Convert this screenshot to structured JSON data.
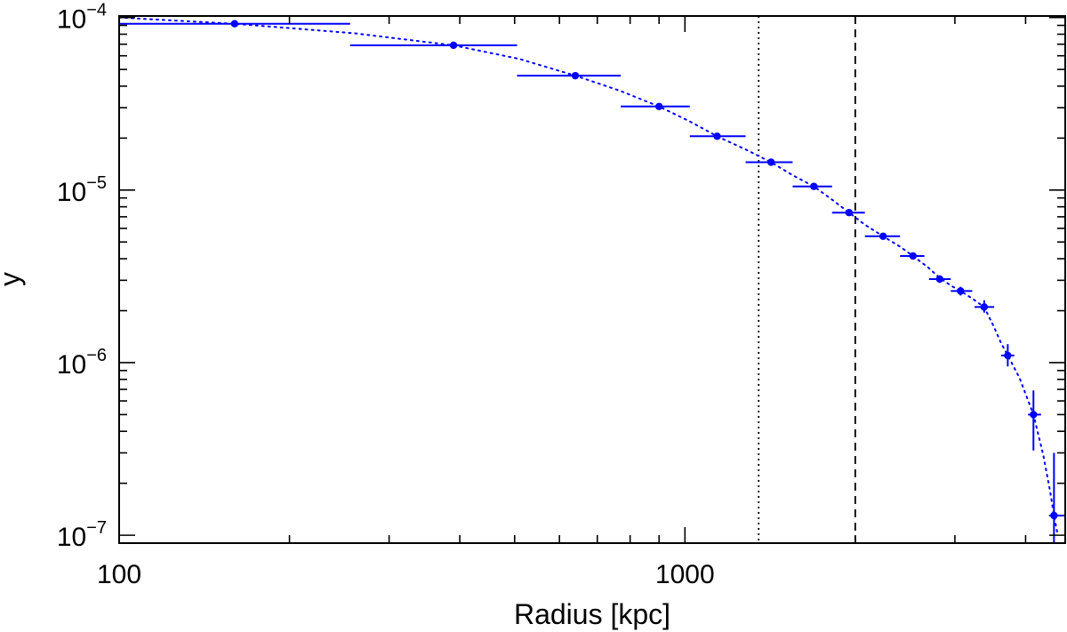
{
  "chart_data": {
    "type": "scatter",
    "xlabel": "Radius [kpc]",
    "ylabel": "y",
    "xscale": "log",
    "yscale": "log",
    "xlim": [
      100,
      4700
    ],
    "ylim": [
      9e-08,
      0.000102
    ],
    "x_tick_labels": [
      {
        "value": 100,
        "label": "100"
      },
      {
        "value": 1000,
        "label": "1000"
      }
    ],
    "y_tick_labels": [
      {
        "value": 0.0001,
        "base": "10",
        "exp": "−4"
      },
      {
        "value": 1e-05,
        "base": "10",
        "exp": "−5"
      },
      {
        "value": 1e-06,
        "base": "10",
        "exp": "−6"
      },
      {
        "value": 1e-07,
        "base": "10",
        "exp": "−7"
      }
    ],
    "grid": false,
    "series": [
      {
        "color": "#0000ff",
        "points": [
          {
            "x": 160,
            "y": 9.2e-05,
            "xlo": 100,
            "xhi": 256,
            "ylo": 9.2e-05,
            "yhi": 9.2e-05
          },
          {
            "x": 390,
            "y": 6.9e-05,
            "xlo": 256,
            "xhi": 505,
            "ylo": 6.9e-05,
            "yhi": 6.9e-05
          },
          {
            "x": 640,
            "y": 4.6e-05,
            "xlo": 505,
            "xhi": 770,
            "ylo": 4.6e-05,
            "yhi": 4.6e-05
          },
          {
            "x": 900,
            "y": 3.05e-05,
            "xlo": 770,
            "xhi": 1020,
            "ylo": 3.05e-05,
            "yhi": 3.05e-05
          },
          {
            "x": 1140,
            "y": 2.05e-05,
            "xlo": 1020,
            "xhi": 1280,
            "ylo": 2.05e-05,
            "yhi": 2.05e-05
          },
          {
            "x": 1420,
            "y": 1.45e-05,
            "xlo": 1280,
            "xhi": 1550,
            "ylo": 1.45e-05,
            "yhi": 1.45e-05
          },
          {
            "x": 1690,
            "y": 1.05e-05,
            "xlo": 1550,
            "xhi": 1820,
            "ylo": 1.05e-05,
            "yhi": 1.05e-05
          },
          {
            "x": 1950,
            "y": 7.4e-06,
            "xlo": 1820,
            "xhi": 2080,
            "ylo": 7.4e-06,
            "yhi": 7.4e-06
          },
          {
            "x": 2240,
            "y": 5.4e-06,
            "xlo": 2080,
            "xhi": 2400,
            "ylo": 5.4e-06,
            "yhi": 5.4e-06
          },
          {
            "x": 2530,
            "y": 4.15e-06,
            "xlo": 2400,
            "xhi": 2650,
            "ylo": 4.05e-06,
            "yhi": 4.25e-06
          },
          {
            "x": 2820,
            "y": 3.05e-06,
            "xlo": 2700,
            "xhi": 2950,
            "ylo": 2.9e-06,
            "yhi": 3.2e-06
          },
          {
            "x": 3070,
            "y": 2.6e-06,
            "xlo": 2950,
            "xhi": 3220,
            "ylo": 2.45e-06,
            "yhi": 2.75e-06
          },
          {
            "x": 3380,
            "y": 2.1e-06,
            "xlo": 3250,
            "xhi": 3520,
            "ylo": 1.95e-06,
            "yhi": 2.3e-06
          },
          {
            "x": 3720,
            "y": 1.1e-06,
            "xlo": 3620,
            "xhi": 3820,
            "ylo": 9.5e-07,
            "yhi": 1.28e-06
          },
          {
            "x": 4130,
            "y": 5e-07,
            "xlo": 4040,
            "xhi": 4260,
            "ylo": 3.1e-07,
            "yhi": 6.9e-07
          },
          {
            "x": 4490,
            "y": 1.3e-07,
            "xlo": 4400,
            "xhi": 4700,
            "ylo": 9e-08,
            "yhi": 3e-07
          }
        ]
      }
    ],
    "fit_curve": {
      "color": "#0000ff",
      "style": "dotted",
      "points": [
        [
          100,
          0.0001
        ],
        [
          160,
          9.2e-05
        ],
        [
          260,
          8.1e-05
        ],
        [
          390,
          6.9e-05
        ],
        [
          510,
          5.75e-05
        ],
        [
          640,
          4.6e-05
        ],
        [
          770,
          3.75e-05
        ],
        [
          900,
          3.05e-05
        ],
        [
          1020,
          2.5e-05
        ],
        [
          1140,
          2.05e-05
        ],
        [
          1280,
          1.72e-05
        ],
        [
          1420,
          1.45e-05
        ],
        [
          1550,
          1.22e-05
        ],
        [
          1690,
          1.05e-05
        ],
        [
          1820,
          8.8e-06
        ],
        [
          1950,
          7.4e-06
        ],
        [
          2080,
          6.3e-06
        ],
        [
          2240,
          5.4e-06
        ],
        [
          2400,
          4.7e-06
        ],
        [
          2530,
          4.15e-06
        ],
        [
          2680,
          3.6e-06
        ],
        [
          2820,
          3.1e-06
        ],
        [
          2950,
          2.8e-06
        ],
        [
          3070,
          2.6e-06
        ],
        [
          3220,
          2.35e-06
        ],
        [
          3380,
          2.1e-06
        ],
        [
          3520,
          1.6e-06
        ],
        [
          3620,
          1.3e-06
        ],
        [
          3720,
          1.1e-06
        ],
        [
          3900,
          8.2e-07
        ],
        [
          4130,
          5e-07
        ],
        [
          4300,
          2.9e-07
        ],
        [
          4420,
          1.8e-07
        ],
        [
          4490,
          1.3e-07
        ],
        [
          4560,
          1e-07
        ]
      ]
    },
    "reference_lines": [
      {
        "x": 1350,
        "style": "dotted",
        "color": "#000000"
      },
      {
        "x": 2000,
        "style": "dashed",
        "color": "#000000"
      }
    ]
  }
}
